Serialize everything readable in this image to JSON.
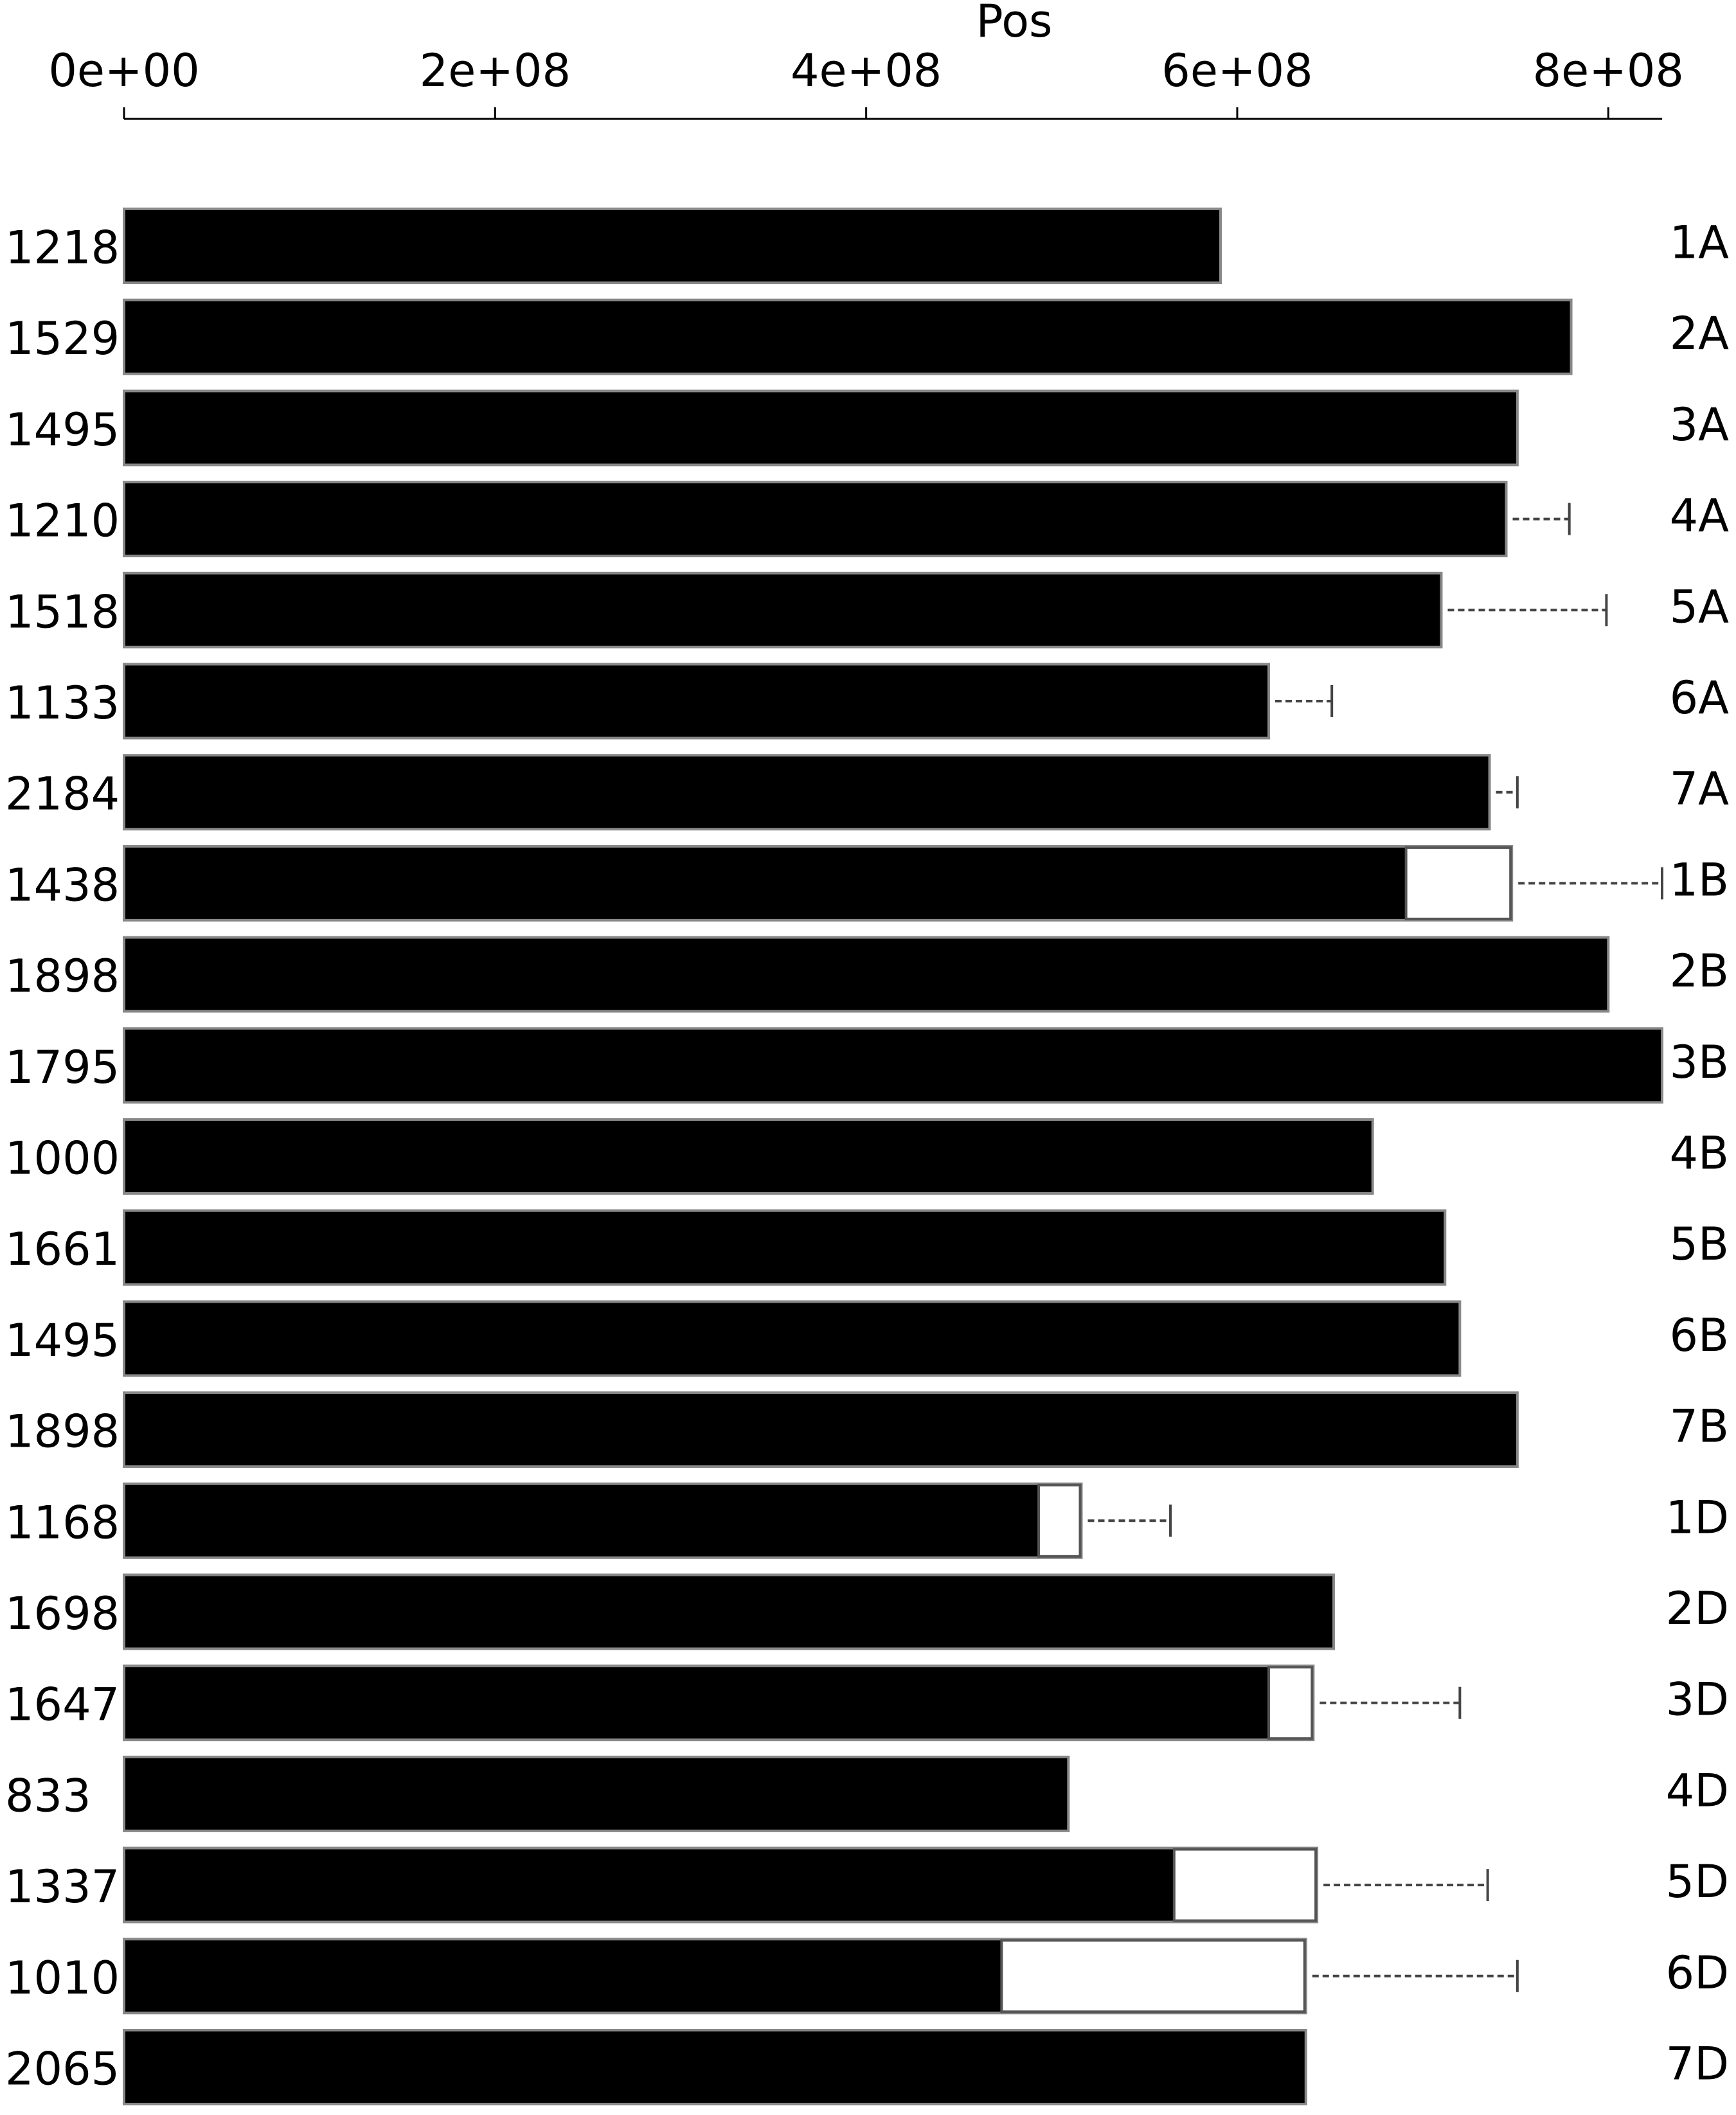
{
  "chart_data": {
    "type": "chromosome",
    "x_label": "Pos",
    "xlim": [
      0,
      829000000
    ],
    "xticks": [
      {
        "value": 0,
        "label": "0e+00"
      },
      {
        "value": 200000000,
        "label": "2e+08"
      },
      {
        "value": 400000000,
        "label": "4e+08"
      },
      {
        "value": 600000000,
        "label": "6e+08"
      },
      {
        "value": 800000000,
        "label": "8e+08"
      }
    ],
    "color": "#000000",
    "chromosomes": [
      {
        "name": "1A",
        "count": "1218",
        "length": 591000000
      },
      {
        "name": "2A",
        "count": "1529",
        "length": 780000000
      },
      {
        "name": "3A",
        "count": "1495",
        "length": 751000000
      },
      {
        "name": "4A",
        "count": "1210",
        "length": 745000000,
        "tail_end": 779000000
      },
      {
        "name": "5A",
        "count": "1518",
        "length": 710000000,
        "tail_end": 799000000
      },
      {
        "name": "6A",
        "count": "1133",
        "length": 617000000,
        "tail_end": 651000000
      },
      {
        "name": "7A",
        "count": "2184",
        "length": 736000000,
        "tail_end": 751000000
      },
      {
        "name": "1B",
        "count": "1438",
        "length": 748000000,
        "white_start": 691000000,
        "tail_end": 829000000
      },
      {
        "name": "2B",
        "count": "1898",
        "length": 800000000
      },
      {
        "name": "3B",
        "count": "1795",
        "length": 829000000
      },
      {
        "name": "4B",
        "count": "1000",
        "length": 673000000
      },
      {
        "name": "5B",
        "count": "1661",
        "length": 712000000
      },
      {
        "name": "6B",
        "count": "1495",
        "length": 720000000
      },
      {
        "name": "7B",
        "count": "1898",
        "length": 751000000
      },
      {
        "name": "1D",
        "count": "1168",
        "length": 516000000,
        "white_start": 493000000,
        "tail_end": 564000000
      },
      {
        "name": "2D",
        "count": "1698",
        "length": 652000000
      },
      {
        "name": "3D",
        "count": "1647",
        "length": 641000000,
        "white_start": 617000000,
        "tail_end": 720000000
      },
      {
        "name": "4D",
        "count": "833",
        "length": 509000000
      },
      {
        "name": "5D",
        "count": "1337",
        "length": 643000000,
        "white_start": 566000000,
        "tail_end": 735000000
      },
      {
        "name": "6D",
        "count": "1010",
        "length": 637000000,
        "white_start": 473000000,
        "tail_end": 751000000
      },
      {
        "name": "7D",
        "count": "2065",
        "length": 637000000
      }
    ]
  }
}
